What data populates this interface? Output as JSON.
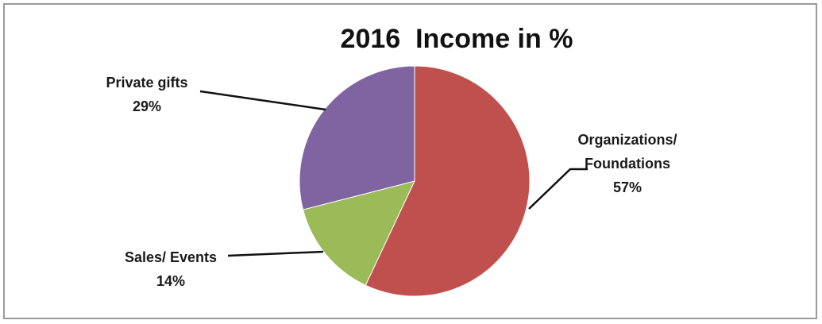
{
  "chart_data": {
    "type": "pie",
    "title": "2016  Income in %",
    "slices": [
      {
        "label_lines": [
          "Organizations/",
          "Foundations"
        ],
        "value": 57,
        "percent_label": "57%",
        "color": "#c0504d"
      },
      {
        "label_lines": [
          "Sales/ Events"
        ],
        "value": 14,
        "percent_label": "14%",
        "color": "#9bbb59"
      },
      {
        "label_lines": [
          "Private gifts"
        ],
        "value": 29,
        "percent_label": "29%",
        "color": "#8064a2"
      }
    ],
    "legend": "none",
    "label_position": "outside with leader lines"
  }
}
